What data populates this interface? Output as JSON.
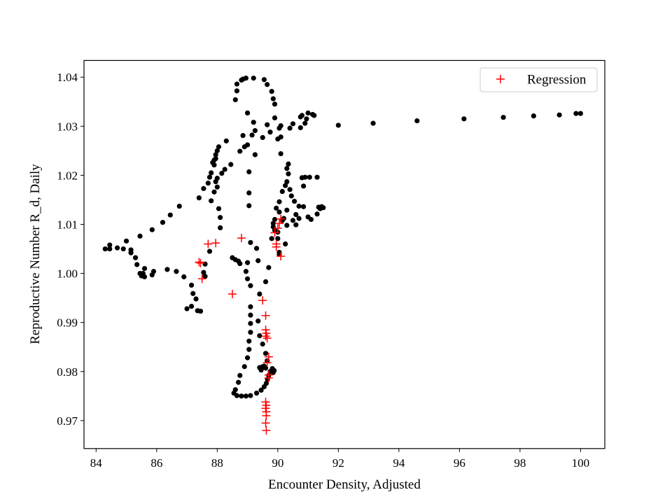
{
  "chart_data": {
    "type": "scatter",
    "title": "",
    "xlabel": "Encounter Density, Adjusted",
    "ylabel": "Reproductive Number R_d, Daily",
    "xlim": [
      83.6,
      100.8
    ],
    "ylim": [
      0.9643,
      1.0434
    ],
    "xticks": [
      84,
      86,
      88,
      90,
      92,
      94,
      96,
      98,
      100
    ],
    "yticks": [
      0.97,
      0.98,
      0.99,
      1.0,
      1.01,
      1.02,
      1.03,
      1.04
    ],
    "ytick_labels": [
      "0.97",
      "0.98",
      "0.99",
      "1.00",
      "1.01",
      "1.02",
      "1.03",
      "1.04"
    ],
    "grid": false,
    "legend": {
      "position": "top-right",
      "entries": [
        "Regression"
      ]
    },
    "colors": {
      "observed": "#000000",
      "regression": "#ff0000"
    },
    "series": [
      {
        "marker": "circle",
        "color": "#000000",
        "points": [
          [
            84.3,
            1.005
          ],
          [
            84.45,
            1.0058
          ],
          [
            84.45,
            1.005
          ],
          [
            84.7,
            1.0052
          ],
          [
            84.9,
            1.005
          ],
          [
            85.0,
            1.0066
          ],
          [
            85.15,
            1.0048
          ],
          [
            85.15,
            1.0042
          ],
          [
            85.3,
            1.0032
          ],
          [
            85.35,
            1.0018
          ],
          [
            85.45,
            1.0076
          ],
          [
            85.45,
            1.0
          ],
          [
            85.5,
            0.9995
          ],
          [
            85.55,
            1.0
          ],
          [
            85.6,
            1.001
          ],
          [
            85.6,
            0.9993
          ],
          [
            85.85,
            0.9997
          ],
          [
            85.9,
            1.0004
          ],
          [
            85.85,
            1.0089
          ],
          [
            86.2,
            1.0104
          ],
          [
            86.35,
            1.0008
          ],
          [
            86.45,
            1.0119
          ],
          [
            86.65,
            1.0004
          ],
          [
            86.75,
            1.0137
          ],
          [
            86.9,
            0.9993
          ],
          [
            87.0,
            0.9928
          ],
          [
            87.15,
            0.9976
          ],
          [
            87.2,
            0.9959
          ],
          [
            87.15,
            0.9933
          ],
          [
            87.3,
            0.9948
          ],
          [
            87.35,
            0.9924
          ],
          [
            87.45,
            0.9923
          ],
          [
            87.4,
            1.0154
          ],
          [
            87.55,
            1.0002
          ],
          [
            87.6,
            1.0019
          ],
          [
            87.55,
            1.0173
          ],
          [
            87.6,
            0.9994
          ],
          [
            87.7,
            1.0184
          ],
          [
            87.75,
            1.0045
          ],
          [
            87.75,
            1.0196
          ],
          [
            87.8,
            1.0205
          ],
          [
            87.8,
            1.0148
          ],
          [
            87.9,
            1.0166
          ],
          [
            87.85,
            1.0226
          ],
          [
            87.9,
            1.0221
          ],
          [
            87.9,
            1.0231
          ],
          [
            87.95,
            1.0234
          ],
          [
            87.95,
            1.0187
          ],
          [
            87.95,
            1.0242
          ],
          [
            88.0,
            1.025
          ],
          [
            88.0,
            1.0194
          ],
          [
            88.0,
            1.0176
          ],
          [
            88.05,
            1.0258
          ],
          [
            88.05,
            1.0132
          ],
          [
            88.1,
            1.0114
          ],
          [
            88.1,
            1.0093
          ],
          [
            88.15,
            1.0204
          ],
          [
            88.25,
            1.0212
          ],
          [
            88.3,
            1.027
          ],
          [
            88.45,
            1.0222
          ],
          [
            88.5,
            1.0032
          ],
          [
            88.6,
            1.0028
          ],
          [
            88.6,
            1.0354
          ],
          [
            88.65,
            1.0372
          ],
          [
            88.65,
            1.0386
          ],
          [
            88.7,
            1.0025
          ],
          [
            88.75,
            1.002
          ],
          [
            88.75,
            1.0249
          ],
          [
            88.8,
            1.0394
          ],
          [
            88.85,
            1.0396
          ],
          [
            88.85,
            1.0281
          ],
          [
            88.9,
            1.0258
          ],
          [
            88.95,
            1.0398
          ],
          [
            88.95,
            1.0004
          ],
          [
            89.0,
            1.0327
          ],
          [
            89.0,
            1.0022
          ],
          [
            89.0,
            0.9989
          ],
          [
            89.0,
            1.0262
          ],
          [
            89.05,
            1.0164
          ],
          [
            89.05,
            1.0138
          ],
          [
            89.05,
            1.0207
          ],
          [
            89.1,
            1.0063
          ],
          [
            89.1,
            0.9975
          ],
          [
            89.15,
            1.0282
          ],
          [
            89.2,
            1.0398
          ],
          [
            89.2,
            1.0308
          ],
          [
            89.25,
            1.0291
          ],
          [
            89.25,
            1.0242
          ],
          [
            89.3,
            1.0051
          ],
          [
            89.35,
            1.0026
          ],
          [
            89.4,
            0.9958
          ],
          [
            89.5,
            1.0277
          ],
          [
            89.55,
            1.0395
          ],
          [
            89.6,
            0.9983
          ],
          [
            89.65,
            1.0385
          ],
          [
            89.65,
            1.0303
          ],
          [
            89.7,
            1.0012
          ],
          [
            89.75,
            1.0288
          ],
          [
            89.8,
            1.0371
          ],
          [
            89.85,
            1.0356
          ],
          [
            89.9,
            1.0345
          ],
          [
            89.9,
            1.0317
          ],
          [
            89.85,
            1.0102
          ],
          [
            89.85,
            1.0095
          ],
          [
            89.8,
            1.0071
          ],
          [
            89.9,
            1.011
          ],
          [
            89.9,
            1.0088
          ],
          [
            89.95,
            1.0133
          ],
          [
            90.0,
            1.0274
          ],
          [
            90.0,
            1.0084
          ],
          [
            90.0,
            1.0071
          ],
          [
            90.05,
            1.0296
          ],
          [
            90.05,
            1.0146
          ],
          [
            90.05,
            1.0125
          ],
          [
            90.05,
            1.0043
          ],
          [
            90.05,
            1.0039
          ],
          [
            90.1,
            1.0301
          ],
          [
            90.1,
            1.0278
          ],
          [
            90.1,
            1.0244
          ],
          [
            90.15,
            1.0167
          ],
          [
            90.15,
            1.0108
          ],
          [
            90.2,
            1.0112
          ],
          [
            90.25,
            1.0179
          ],
          [
            90.3,
            1.0214
          ],
          [
            90.3,
            1.0187
          ],
          [
            90.3,
            1.0129
          ],
          [
            90.3,
            1.0098
          ],
          [
            90.25,
            1.006
          ],
          [
            90.35,
            1.0203
          ],
          [
            90.35,
            1.0223
          ],
          [
            90.4,
            1.0296
          ],
          [
            90.4,
            1.0171
          ],
          [
            90.45,
            1.0158
          ],
          [
            90.5,
            1.0305
          ],
          [
            90.5,
            1.0108
          ],
          [
            90.55,
            1.0147
          ],
          [
            90.6,
            1.0099
          ],
          [
            90.6,
            1.012
          ],
          [
            90.7,
            1.0137
          ],
          [
            90.7,
            1.0112
          ],
          [
            90.75,
            1.0319
          ],
          [
            90.75,
            1.0297
          ],
          [
            90.8,
            1.0195
          ],
          [
            90.8,
            1.0322
          ],
          [
            90.85,
            1.0136
          ],
          [
            90.85,
            1.0178
          ],
          [
            90.9,
            1.0196
          ],
          [
            90.9,
            1.0306
          ],
          [
            90.95,
            1.0315
          ],
          [
            91.0,
            1.0115
          ],
          [
            91.0,
            1.0327
          ],
          [
            91.05,
            1.0196
          ],
          [
            91.1,
            1.011
          ],
          [
            91.15,
            1.0324
          ],
          [
            91.2,
            1.0322
          ],
          [
            91.3,
            1.0196
          ],
          [
            91.3,
            1.0121
          ],
          [
            91.35,
            1.0135
          ],
          [
            91.4,
            1.0132
          ],
          [
            91.45,
            1.0136
          ],
          [
            91.5,
            1.0134
          ],
          [
            92.0,
            1.0302
          ],
          [
            93.15,
            1.0306
          ],
          [
            94.6,
            1.0311
          ],
          [
            96.15,
            1.0315
          ],
          [
            97.45,
            1.0318
          ],
          [
            98.45,
            1.0321
          ],
          [
            99.3,
            1.0323
          ],
          [
            99.85,
            1.0326
          ],
          [
            100.0,
            1.0326
          ],
          [
            89.1,
            0.9932
          ],
          [
            89.1,
            0.9915
          ],
          [
            89.1,
            0.9898
          ],
          [
            89.1,
            0.988
          ],
          [
            89.05,
            0.9862
          ],
          [
            89.05,
            0.9845
          ],
          [
            89.0,
            0.9828
          ],
          [
            88.9,
            0.981
          ],
          [
            88.75,
            0.9792
          ],
          [
            88.7,
            0.9778
          ],
          [
            88.6,
            0.9763
          ],
          [
            88.55,
            0.9756
          ],
          [
            88.65,
            0.9751
          ],
          [
            88.8,
            0.975
          ],
          [
            88.95,
            0.975
          ],
          [
            89.1,
            0.9751
          ],
          [
            89.3,
            0.9756
          ],
          [
            89.45,
            0.9762
          ],
          [
            89.55,
            0.9769
          ],
          [
            89.62,
            0.9776
          ],
          [
            89.66,
            0.9784
          ],
          [
            89.7,
            0.9792
          ],
          [
            89.75,
            0.98
          ],
          [
            89.82,
            0.9806
          ],
          [
            89.88,
            0.9802
          ],
          [
            89.85,
            0.9798
          ],
          [
            89.6,
            0.9807
          ],
          [
            89.5,
            0.981
          ],
          [
            89.4,
            0.9808
          ],
          [
            89.45,
            0.9803
          ],
          [
            89.55,
            0.9811
          ],
          [
            89.65,
            0.9822
          ],
          [
            89.6,
            0.9837
          ],
          [
            89.5,
            0.9856
          ],
          [
            89.4,
            0.9873
          ],
          [
            89.35,
            0.9903
          ]
        ]
      },
      {
        "name": "Regression",
        "marker": "plus",
        "color": "#ff0000",
        "points": [
          [
            87.4,
            1.0023
          ],
          [
            87.45,
            1.0021
          ],
          [
            87.5,
            0.9989
          ],
          [
            87.7,
            1.006
          ],
          [
            87.95,
            1.0062
          ],
          [
            88.5,
            0.9958
          ],
          [
            88.8,
            1.0072
          ],
          [
            89.5,
            0.9945
          ],
          [
            89.6,
            0.9914
          ],
          [
            89.6,
            0.9885
          ],
          [
            89.62,
            0.9878
          ],
          [
            89.6,
            0.9872
          ],
          [
            89.65,
            0.9868
          ],
          [
            89.7,
            0.983
          ],
          [
            89.65,
            0.9818
          ],
          [
            89.7,
            0.9793
          ],
          [
            89.7,
            0.9787
          ],
          [
            89.6,
            0.9738
          ],
          [
            89.62,
            0.9731
          ],
          [
            89.6,
            0.9725
          ],
          [
            89.62,
            0.9718
          ],
          [
            89.62,
            0.971
          ],
          [
            89.6,
            0.9695
          ],
          [
            89.62,
            0.968
          ],
          [
            89.95,
            1.0054
          ],
          [
            89.95,
            1.006
          ],
          [
            89.9,
            1.0083
          ],
          [
            90.0,
            1.0092
          ],
          [
            90.05,
            1.0102
          ],
          [
            90.1,
            1.0111
          ],
          [
            90.1,
            1.0035
          ]
        ]
      }
    ]
  }
}
